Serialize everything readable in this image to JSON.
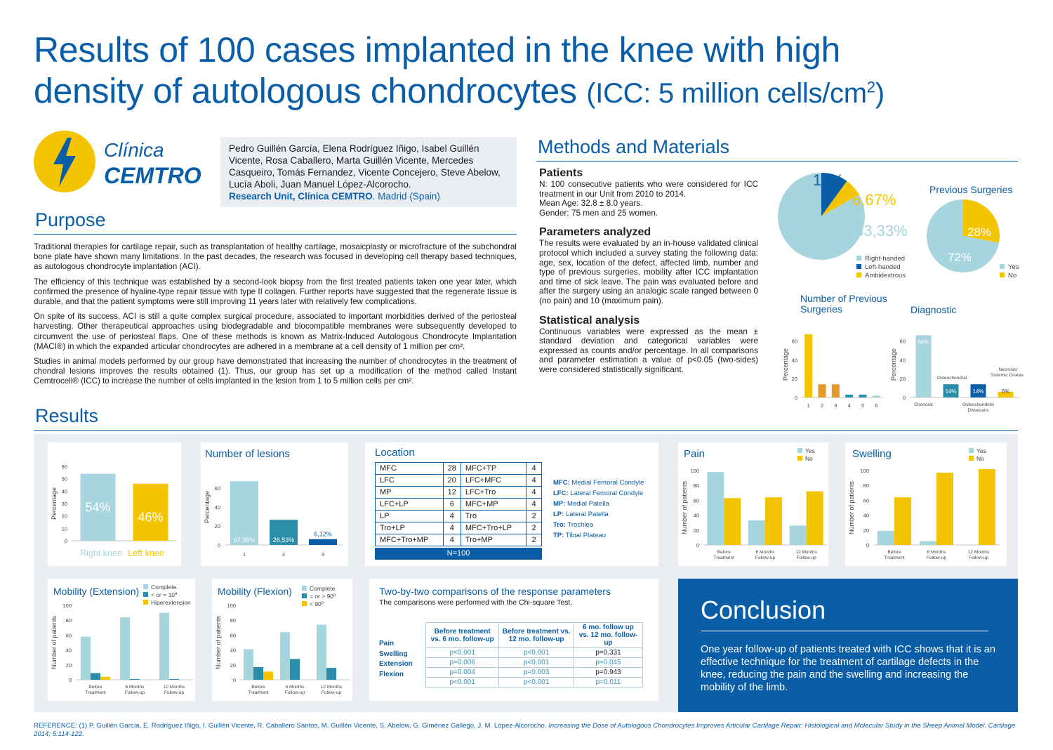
{
  "title": {
    "line1": "Results of 100 cases implanted in the knee with high",
    "line2": "density of autologous chondrocytes",
    "line2_paren_open": "(ICC: 5 million cells/cm",
    "sup": "2",
    "line2_paren_close": ")"
  },
  "logo": {
    "name1": "Clínica",
    "name2": "CEMTRO"
  },
  "authors": {
    "names": "Pedro Guillén García, Elena Rodríguez Iñigo, Isabel Guillén Vicente, Rosa Caballero, Marta Guillén Vicente, Mercedes Casqueiro, Tomás Fernandez, Vicente Concejero, Steve Abelow, Lucía Aboli, Juan Manuel López-Alcorocho.",
    "unit": "Research Unit, Clínica CEMTRO",
    "city": ". Madrid (Spain)"
  },
  "purpose": {
    "heading": "Purpose",
    "p1": "Traditional therapies for cartilage repair, such as transplantation of healthy cartilage, mosaicplasty or microfracture of the subchondral bone plate have shown many limitations. In the past decades, the research was focused in developing cell therapy based techniques, as autologous chondrocyte implantation (ACI).",
    "p2": "The efficiency of this technique was established by a second-look biopsy from the first treated patients taken one year later, which confirmed the presence of hyaline-type repair tissue with type II collagen. Further reports have suggested that the regenerate tissue is durable, and that the patient symptoms were still improving 11 years later with relatively few complications.",
    "p3": "On spite of its success, ACI is still a quite complex surgical procedure, associated to important morbidities derived of the periosteal harvesting. Other therapeutical approaches using biodegradable and biocompatible membranes were subsequently developed to circumvent the use of periosteal flaps. One of these methods is known as Matrix-Induced Autologous Chondrocyte Implantation (MACI®) in which the expanded articular chondrocytes are adhered in a membrane at a cell density of 1 million per cm².",
    "p4": "Studies in animal models performed by our group have demonstrated that increasing the number of chondrocytes in the treatment of chondral lesions improves the results obtained (1). Thus, our group has set up a modification of the method called Instant Cemtrocell® (ICC) to increase the number of cells implanted in the lesion from 1 to 5 million cells per cm²."
  },
  "methods": {
    "heading": "Methods and Materials",
    "patients_h": "Patients",
    "patients_1": "N: 100 consecutive patients who were considered for ICC treatment in our Unit from 2010 to 2014.",
    "patients_2": "Mean Age: 32.8 ± 8.0 years.",
    "patients_3": "Gender: 75 men and 25 women.",
    "params_h": "Parameters analyzed",
    "params_t": "The results were evaluated by an in-house validated clinical protocol which included a survey stating the following data: age, sex, location of the defect, affected limb, number and type of previous surgeries, mobility after ICC implantation and time of sick leave. The pain was evaluated before and after the surgery using an analogic scale ranged between 0 (no pain) and 10 (maximum pain).",
    "stat_h": "Statistical analysis",
    "stat_t": "Continuous variables were expressed as the mean ± standard deviation and categorical variables were expressed as counts and/or percentage. In all comparisons and parameter estimation a value of p<0.05 (two-sides) were considered statistically significant."
  },
  "results": {
    "heading": "Results"
  },
  "location": {
    "title": "Location",
    "rows": [
      [
        "MFC",
        "28",
        "MFC+TP",
        "4"
      ],
      [
        "LFC",
        "20",
        "LFC+MFC",
        "4"
      ],
      [
        "MP",
        "12",
        "LFC+Tro",
        "4"
      ],
      [
        "LFC+LP",
        "6",
        "MFC+MP",
        "4"
      ],
      [
        "LP",
        "4",
        "Tro",
        "2"
      ],
      [
        "Tro+LP",
        "4",
        "MFC+Tro+LP",
        "2"
      ],
      [
        "MFC+Tro+MP",
        "4",
        "Tro+MP",
        "2"
      ]
    ],
    "total": "N=100",
    "legend": [
      [
        "MFC:",
        "Medial Femoral Condyle"
      ],
      [
        "LFC:",
        "Lateral Femoral Condyle"
      ],
      [
        "MP:",
        "Medial Patella"
      ],
      [
        "LP:",
        "Lateral Patella"
      ],
      [
        "Tro:",
        "Trochlea"
      ],
      [
        "TP:",
        "Tibial Plateau"
      ]
    ]
  },
  "comparisons": {
    "title": "Two-by-two comparisons of the response parameters",
    "subtitle": "The comparisons were performed with the Chi-square Test.",
    "headers": [
      "Before treatment vs. 6 mo. follow-up",
      "Before treatment vs. 12 mo. follow-up",
      "6 mo. follow up vs. 12 mo. follow-up"
    ],
    "rows": [
      [
        "Pain",
        "p<0.001",
        "p<0.001",
        "p=0.331"
      ],
      [
        "Swelling",
        "p=0.006",
        "p<0.001",
        "p=0.045"
      ],
      [
        "Extension",
        "p=0.004",
        "p=0.003",
        "p=0.943"
      ],
      [
        "Flexion",
        "p<0.001",
        "p<0.001",
        "p=0.011"
      ]
    ]
  },
  "conclusion": {
    "heading": "Conclusion",
    "text": "One year follow-up of patients treated with ICC shows that it is an effective technique for the treatment of cartilage defects in the knee, reducing the pain and the swelling and increasing the mobility of the limb."
  },
  "reference": {
    "label": "REFERENCE:",
    "text": "(1) P. Guillén García, E. Rodríguez Iñigo, I. Guillén Vicente, R. Caballero Santos, M. Guillén Vicente, S. Abelow, G. Giménez Gallego, J. M. López-Alcorocho.",
    "italic": "Increasing the Dose of Autologous Chondrocytes Improves Articular Cartilage Repair: Histological and Molecular Study in the Sheep Animal Model. Cartilage 2014; 5:114-122."
  },
  "colors": {
    "blue": "#0a5ea8",
    "light": "#a6d5de",
    "yellow": "#f5c400",
    "teal": "#2a8ea8",
    "panel": "#eaeef2"
  },
  "chart_data": [
    {
      "id": "handedness",
      "type": "pie",
      "labels": [
        "Right-handed",
        "Left-handed",
        "Ambidextrous"
      ],
      "values": [
        83.33,
        10,
        6.67
      ],
      "data_labels": [
        "83,33%",
        "10%",
        "6,67%"
      ]
    },
    {
      "id": "prev_surgeries",
      "type": "pie",
      "title": "Previous Surgeries",
      "labels": [
        "Yes",
        "No"
      ],
      "values": [
        72,
        28
      ],
      "data_labels": [
        "72%",
        "28%"
      ]
    },
    {
      "id": "num_prev",
      "type": "bar",
      "title": "Number of Previous Surgeries",
      "ylabel": "Percentage",
      "categories": [
        "1",
        "2",
        "3",
        "4",
        "5",
        "6"
      ],
      "values": [
        67,
        14,
        14,
        3,
        3,
        2
      ],
      "ylim": [
        0,
        70
      ],
      "yticks": [
        0,
        20,
        40,
        60
      ]
    },
    {
      "id": "diagnostic",
      "type": "bar",
      "title": "Diagnostic",
      "ylabel": "Percentage",
      "categories": [
        "Chondral",
        "Osteochondral",
        "Osteochondritis Dissecans",
        "Necrosis/ Sistemic Disease"
      ],
      "values": [
        66,
        14,
        14,
        6
      ],
      "data_labels": [
        "66%",
        "14%",
        "14%",
        "6%"
      ],
      "ylim": [
        0,
        70
      ],
      "yticks": [
        0,
        20,
        40,
        60
      ]
    },
    {
      "id": "knee",
      "type": "bar",
      "ylabel": "Percentage",
      "categories": [
        "Right knee",
        "Left knee"
      ],
      "values": [
        54,
        46
      ],
      "data_labels": [
        "54%",
        "46%"
      ],
      "ylim": [
        0,
        60
      ],
      "yticks": [
        0,
        10,
        20,
        30,
        40,
        50,
        60
      ]
    },
    {
      "id": "lesions",
      "type": "bar",
      "title": "Number of lesions",
      "ylabel": "Percentage",
      "categories": [
        "1",
        "2",
        "3"
      ],
      "values": [
        67.35,
        26.53,
        6.12
      ],
      "data_labels": [
        "67,35%",
        "26,53%",
        "6,12%"
      ],
      "ylim": [
        0,
        80
      ],
      "yticks": [
        0,
        20,
        40,
        60
      ]
    },
    {
      "id": "pain",
      "type": "bar",
      "title": "Pain",
      "ylabel": "Number of patients",
      "categories": [
        "Before Treatment",
        "6 Months Follow-up",
        "12 Months Follow-up"
      ],
      "series": [
        {
          "name": "Yes",
          "values": [
            98,
            33,
            26
          ]
        },
        {
          "name": "No",
          "values": [
            63,
            64,
            72
          ]
        }
      ],
      "ylim": [
        0,
        100
      ],
      "yticks": [
        0,
        20,
        40,
        60,
        80,
        100
      ]
    },
    {
      "id": "swelling",
      "type": "bar",
      "title": "Swelling",
      "ylabel": "Number of patients",
      "categories": [
        "Before Treatment",
        "6 Months Follow-up",
        "12 Months Follow-up"
      ],
      "series": [
        {
          "name": "Yes",
          "values": [
            19,
            5,
            0
          ]
        },
        {
          "name": "No",
          "values": [
            64,
            97,
            102
          ]
        }
      ],
      "ylim": [
        0,
        100
      ],
      "yticks": [
        0,
        20,
        40,
        60,
        80,
        100
      ]
    },
    {
      "id": "extension",
      "type": "bar",
      "title": "Mobility (Extension)",
      "ylabel": "Number of patients",
      "categories": [
        "Before Treatment",
        "6 Months Follow-up",
        "12 Months Follow-up"
      ],
      "series": [
        {
          "name": "Complete",
          "values": [
            58,
            84,
            90
          ]
        },
        {
          "name": "< or = 10º",
          "values": [
            9,
            1,
            1
          ]
        },
        {
          "name": "Hiperextension",
          "values": [
            4,
            0,
            0
          ]
        }
      ],
      "ylim": [
        0,
        100
      ],
      "yticks": [
        0,
        20,
        40,
        60,
        80,
        100
      ]
    },
    {
      "id": "flexion",
      "type": "bar",
      "title": "Mobility (Flexion)",
      "ylabel": "Number of patients",
      "categories": [
        "Before Treatment",
        "6 Months Follow-up",
        "12 Months Follow-up"
      ],
      "series": [
        {
          "name": "Complete",
          "values": [
            41,
            64,
            74
          ]
        },
        {
          "name": "= or > 90º",
          "values": [
            17,
            28,
            16
          ]
        },
        {
          "name": "< 90º",
          "values": [
            11,
            0,
            0
          ]
        }
      ],
      "ylim": [
        0,
        100
      ],
      "yticks": [
        0,
        20,
        40,
        60,
        80,
        100
      ]
    }
  ]
}
